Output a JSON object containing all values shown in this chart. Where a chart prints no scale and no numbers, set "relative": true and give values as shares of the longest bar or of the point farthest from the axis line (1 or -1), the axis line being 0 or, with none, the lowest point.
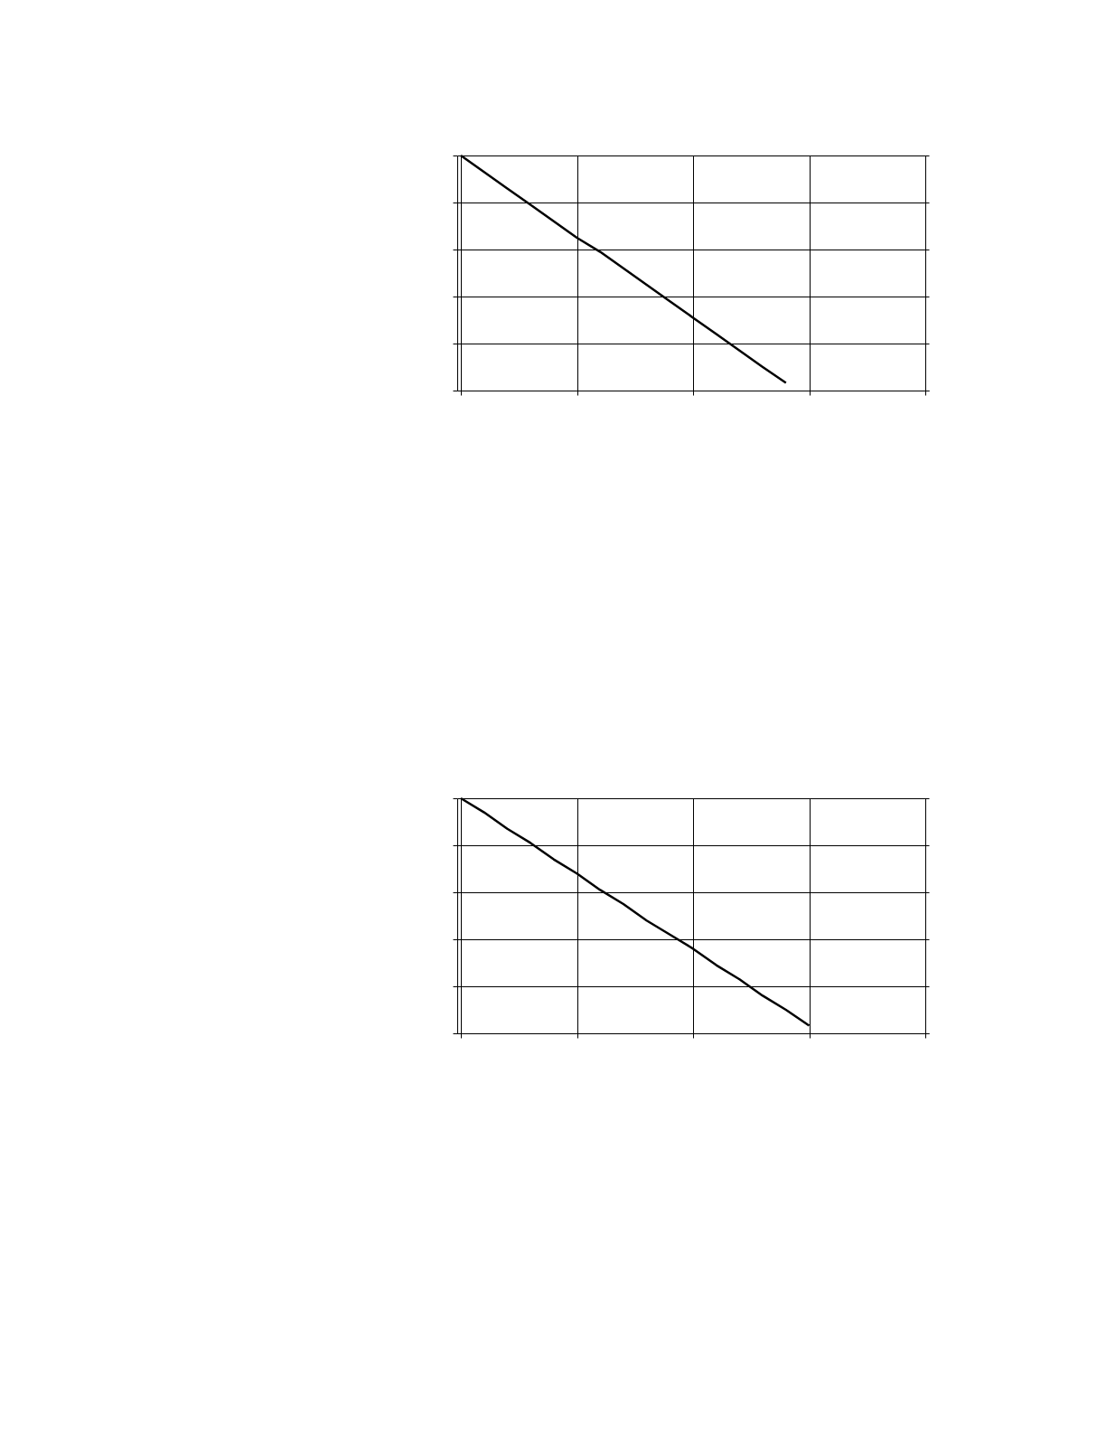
{
  "chart_data": [
    {
      "type": "line",
      "relative": true,
      "grid": true,
      "tick_labels": false,
      "categories": [
        null,
        null,
        null,
        null,
        null,
        null,
        null,
        null,
        null,
        null,
        null,
        null,
        null,
        null,
        null,
        null,
        null,
        null,
        null,
        null,
        null
      ],
      "series": [
        {
          "color": "#000000",
          "values": [
            1,
            0.93,
            0.86,
            0.79,
            0.72,
            0.65,
            0.59,
            0.52,
            0.45,
            0.38,
            0.31,
            0.24,
            0.17,
            0.1,
            0.033,
            null,
            null,
            null,
            null,
            null,
            null
          ]
        }
      ]
    },
    {
      "type": "line",
      "relative": true,
      "grid": true,
      "tick_labels": false,
      "categories": [
        null,
        null,
        null,
        null,
        null,
        null,
        null,
        null,
        null,
        null,
        null,
        null,
        null,
        null,
        null,
        null,
        null,
        null,
        null,
        null,
        null
      ],
      "series": [
        {
          "color": "#000000",
          "values": [
            1,
            0.94,
            0.87,
            0.81,
            0.74,
            0.68,
            0.61,
            0.55,
            0.48,
            0.42,
            0.36,
            0.29,
            0.23,
            0.16,
            0.1,
            0.033,
            null,
            null,
            null,
            null,
            null
          ]
        }
      ]
    }
  ]
}
